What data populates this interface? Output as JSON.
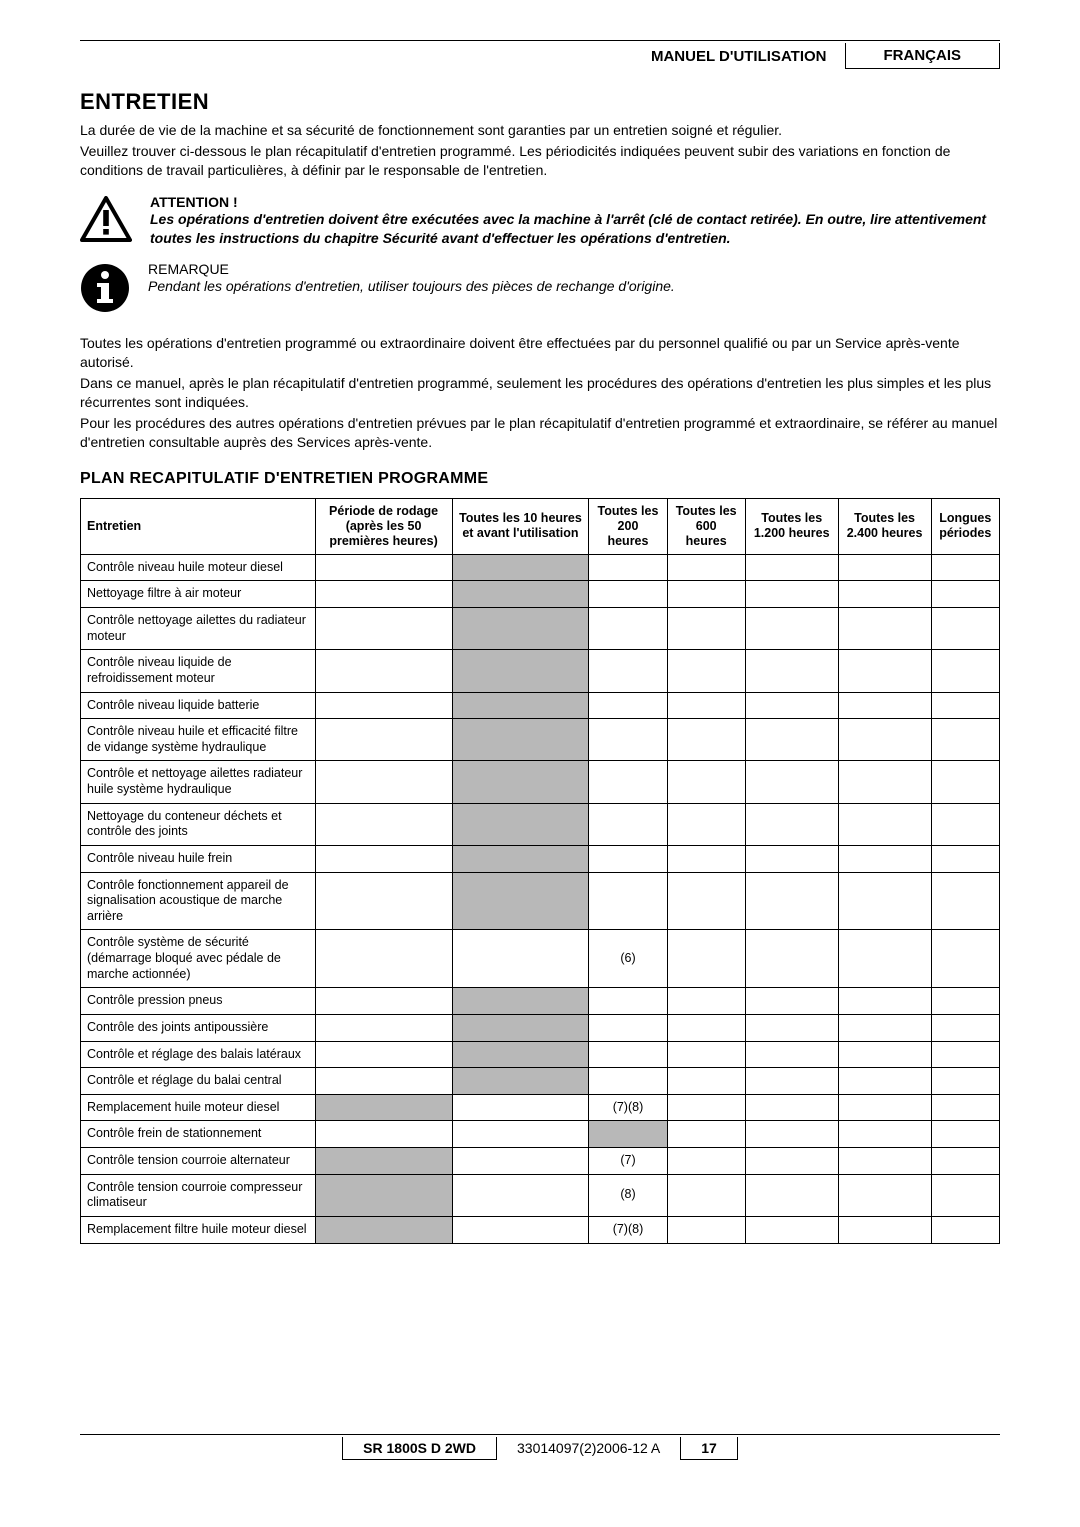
{
  "header": {
    "left": "MANUEL D'UTILISATION",
    "right": "FRANÇAIS"
  },
  "title": "ENTRETIEN",
  "intro": [
    "La durée de vie de la machine et sa sécurité de fonctionnement sont garanties par un entretien soigné et régulier.",
    "Veuillez trouver ci-dessous le plan récapitulatif d'entretien programmé. Les périodicités indiquées peuvent subir des variations en fonction de conditions de travail particulières, à définir par le responsable de l'entretien."
  ],
  "attention": {
    "title": "ATTENTION !",
    "text": "Les opérations d'entretien doivent être exécutées avec la machine à l'arrêt (clé de contact retirée). En outre, lire attentivement toutes les instructions du chapitre Sécurité avant d'effectuer les opérations d'entretien."
  },
  "remarque": {
    "title": "REMARQUE",
    "text": "Pendant les opérations d'entretien, utiliser toujours des pièces de rechange d'origine."
  },
  "body_paras": [
    "Toutes les opérations d'entretien programmé ou extraordinaire doivent être effectuées par du personnel qualifié ou par un Service après-vente autorisé.",
    "Dans ce manuel, après le plan récapitulatif d'entretien programmé, seulement les procédures des opérations d'entretien les plus simples et les plus récurrentes sont indiquées.",
    "Pour les procédures des autres opérations d'entretien prévues par le plan récapitulatif d'entretien programmé et extraordinaire, se référer au manuel d'entretien consultable auprès des Services après-vente."
  ],
  "subtitle": "PLAN RECAPITULATIF D'ENTRETIEN PROGRAMME",
  "table": {
    "columns": [
      "Entretien",
      "Période de rodage (après les 50 premières heures)",
      "Toutes les 10 heures et avant l'utilisation",
      "Toutes les 200 heures",
      "Toutes les 600 heures",
      "Toutes les 1.200 heures",
      "Toutes les 2.400 heures",
      "Longues périodes"
    ],
    "shaded_color": "#b8b8b8",
    "rows": [
      {
        "label": "Contrôle niveau huile moteur diesel",
        "shaded": [
          2
        ],
        "vals": {}
      },
      {
        "label": "Nettoyage filtre à air moteur",
        "shaded": [
          2
        ],
        "vals": {}
      },
      {
        "label": "Contrôle nettoyage ailettes du radiateur moteur",
        "shaded": [
          2
        ],
        "vals": {}
      },
      {
        "label": "Contrôle niveau liquide de refroidissement moteur",
        "shaded": [
          2
        ],
        "vals": {}
      },
      {
        "label": "Contrôle niveau liquide batterie",
        "shaded": [
          2
        ],
        "vals": {}
      },
      {
        "label": "Contrôle niveau huile et efficacité filtre de vidange système hydraulique",
        "shaded": [
          2
        ],
        "vals": {}
      },
      {
        "label": "Contrôle et nettoyage ailettes radiateur huile système hydraulique",
        "shaded": [
          2
        ],
        "vals": {}
      },
      {
        "label": "Nettoyage du conteneur déchets et contrôle des joints",
        "shaded": [
          2
        ],
        "vals": {}
      },
      {
        "label": "Contrôle niveau huile frein",
        "shaded": [
          2
        ],
        "vals": {}
      },
      {
        "label": "Contrôle fonctionnement appareil de signalisation acoustique de marche arrière",
        "shaded": [
          2
        ],
        "vals": {}
      },
      {
        "label": "Contrôle système de sécurité (démarrage bloqué avec pédale de marche actionnée)",
        "shaded": [],
        "vals": {
          "3": "(6)"
        }
      },
      {
        "label": "Contrôle pression pneus",
        "shaded": [
          2
        ],
        "vals": {}
      },
      {
        "label": "Contrôle des joints antipoussière",
        "shaded": [
          2
        ],
        "vals": {}
      },
      {
        "label": "Contrôle et réglage des balais latéraux",
        "shaded": [
          2
        ],
        "vals": {}
      },
      {
        "label": "Contrôle et réglage du balai central",
        "shaded": [
          2
        ],
        "vals": {}
      },
      {
        "label": "Remplacement huile moteur diesel",
        "shaded": [
          1
        ],
        "vals": {
          "3": "(7)(8)"
        }
      },
      {
        "label": "Contrôle frein de stationnement",
        "shaded": [
          3
        ],
        "vals": {}
      },
      {
        "label": "Contrôle tension courroie alternateur",
        "shaded": [
          1
        ],
        "vals": {
          "3": "(7)"
        }
      },
      {
        "label": "Contrôle tension courroie compresseur climatiseur",
        "shaded": [
          1
        ],
        "vals": {
          "3": "(8)"
        }
      },
      {
        "label": "Remplacement filtre huile moteur diesel",
        "shaded": [
          1
        ],
        "vals": {
          "3": "(7)(8)"
        }
      }
    ]
  },
  "footer": {
    "model": "SR 1800S D 2WD",
    "doc": "33014097(2)2006-12 A",
    "page": "17"
  }
}
